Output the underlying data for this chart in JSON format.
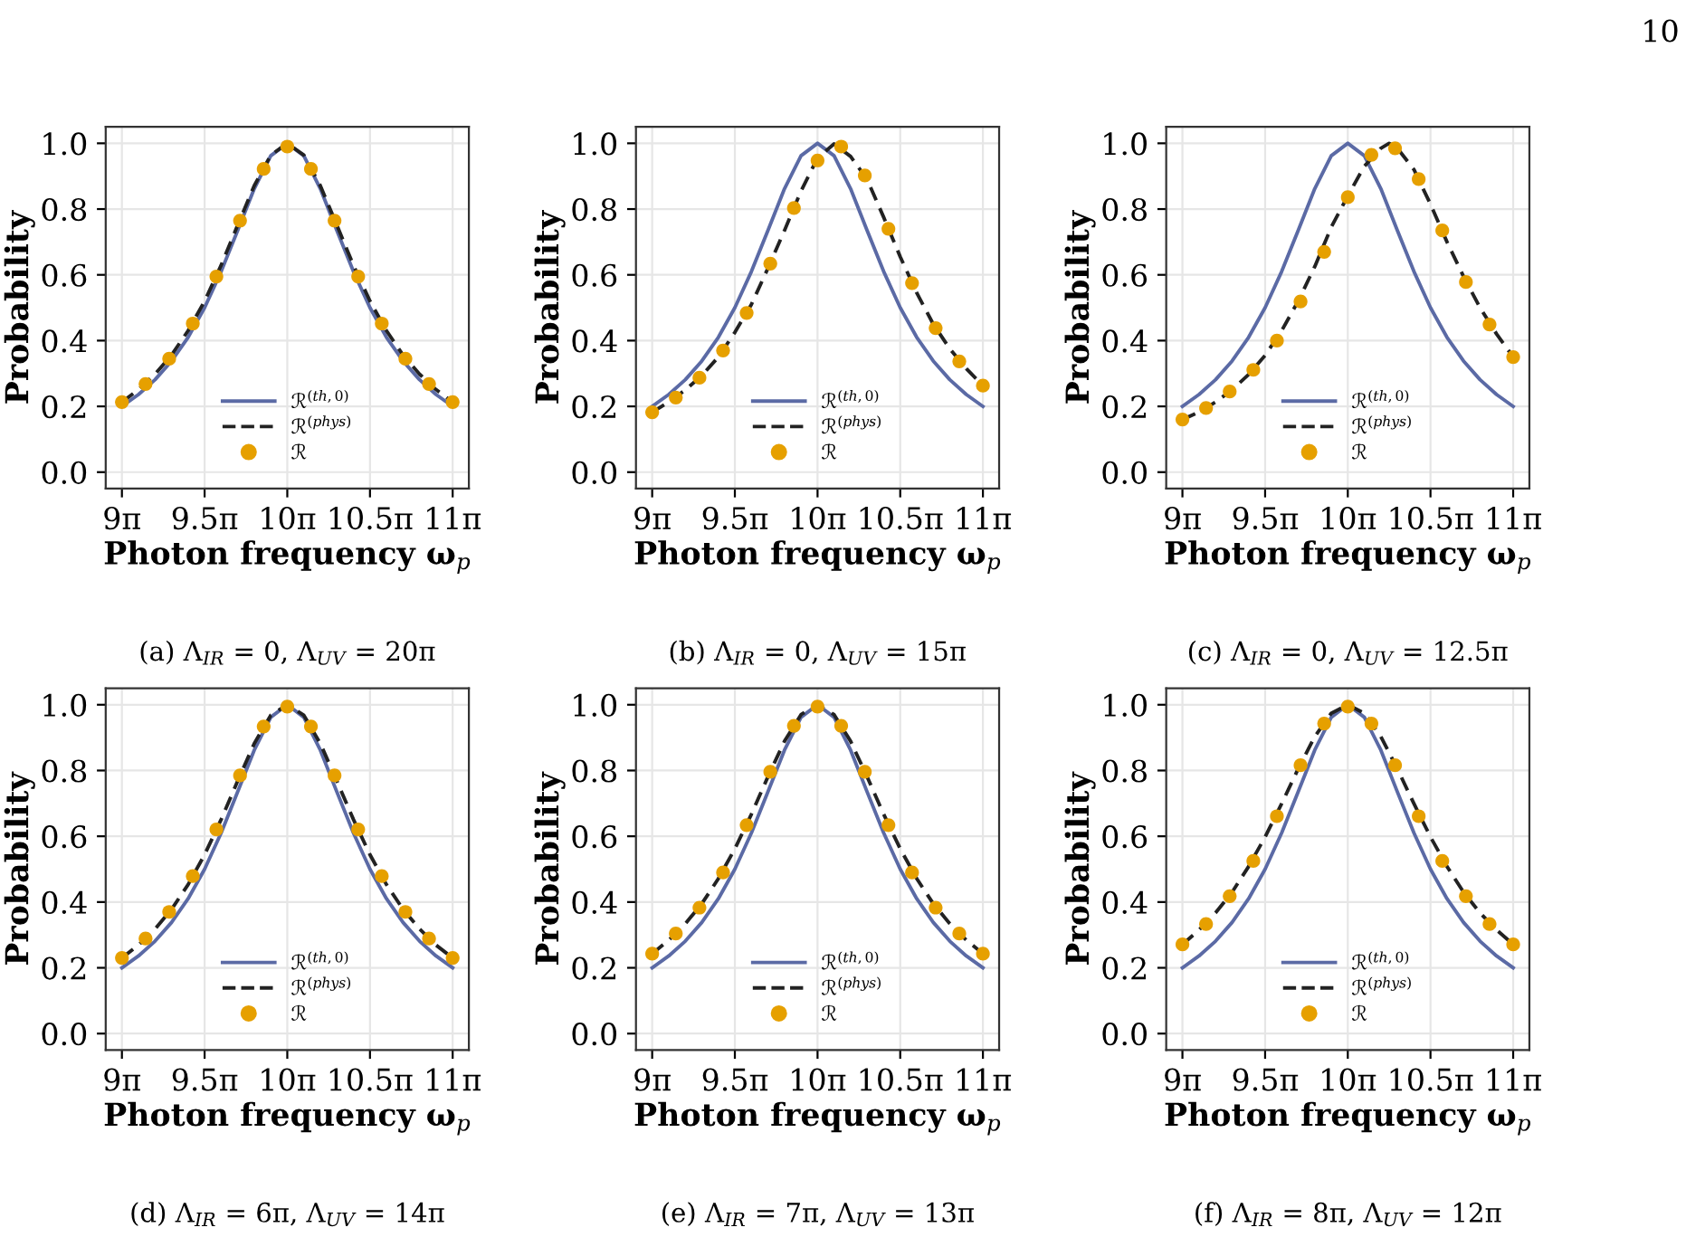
{
  "chart_data": [
    {
      "type": "line",
      "ylabel": "Probability",
      "xlabel": "Photon frequency ω$_{p}$",
      "annotations": [
        "(a) Λ$_{IR}$ = 0, Λ$_{UV}$ = 20π"
      ],
      "x": [
        28.274,
        28.588,
        28.903,
        29.217,
        29.531,
        29.845,
        30.159,
        30.473,
        30.788,
        31.102,
        31.416,
        31.73,
        32.044,
        32.358,
        32.673,
        32.987,
        33.301,
        33.615,
        33.929,
        34.243,
        34.558
      ],
      "xlim": [
        27.966,
        34.866
      ],
      "xticks": [
        {
          "value": 28.274,
          "label": "9π"
        },
        {
          "value": 29.845,
          "label": "9.5π"
        },
        {
          "value": 31.416,
          "label": "10π"
        },
        {
          "value": 32.987,
          "label": "10.5π"
        },
        {
          "value": 34.558,
          "label": "11π"
        }
      ],
      "ylim": [
        -0.05,
        1.05
      ],
      "yticks": [
        {
          "value": 0,
          "label": "0.0"
        },
        {
          "value": 0.2,
          "label": "0.2"
        },
        {
          "value": 0.4,
          "label": "0.4"
        },
        {
          "value": 0.6,
          "label": "0.6"
        },
        {
          "value": 0.8,
          "label": "0.8"
        },
        {
          "value": 1,
          "label": "1.0"
        }
      ],
      "grid": true,
      "legend": "bottom",
      "series": [
        {
          "name": "ℛ$^{(th,0)}$",
          "color": "#5b6aa5",
          "line_style": "solid",
          "values": [
            0.2,
            0.236,
            0.281,
            0.338,
            0.41,
            0.5,
            0.61,
            0.735,
            0.862,
            0.962,
            1,
            0.962,
            0.862,
            0.735,
            0.61,
            0.5,
            0.41,
            0.338,
            0.281,
            0.236,
            0.2
          ]
        },
        {
          "name": "ℛ$^{(phys)}$",
          "color": "#222222",
          "line_style": "dashed",
          "values": [
            0.213,
            0.251,
            0.298,
            0.356,
            0.43,
            0.52,
            0.629,
            0.751,
            0.871,
            0.964,
            1,
            0.964,
            0.871,
            0.751,
            0.629,
            0.52,
            0.43,
            0.356,
            0.298,
            0.251,
            0.213
          ]
        },
        {
          "name": "ℛ",
          "type": "scatter",
          "marker": "circle",
          "color": "#e6a000",
          "x": [
            28.274,
            28.723,
            29.172,
            29.621,
            30.069,
            30.518,
            30.967,
            31.416,
            31.865,
            32.314,
            32.763,
            33.211,
            33.66,
            34.109,
            34.558
          ],
          "values": [
            0.213,
            0.268,
            0.345,
            0.452,
            0.595,
            0.765,
            0.922,
            0.99,
            0.922,
            0.765,
            0.595,
            0.452,
            0.345,
            0.268,
            0.213
          ]
        }
      ]
    },
    {
      "type": "line",
      "ylabel": "Probability",
      "xlabel": "Photon frequency ω$_{p}$",
      "annotations": [
        "(b) Λ$_{IR}$ = 0, Λ$_{UV}$ = 15π"
      ],
      "x": [
        28.274,
        28.588,
        28.903,
        29.217,
        29.531,
        29.845,
        30.159,
        30.473,
        30.788,
        31.102,
        31.416,
        31.73,
        32.044,
        32.358,
        32.673,
        32.987,
        33.301,
        33.615,
        33.929,
        34.243,
        34.558
      ],
      "xlim": [
        27.966,
        34.866
      ],
      "xticks": [
        {
          "value": 28.274,
          "label": "9π"
        },
        {
          "value": 29.845,
          "label": "9.5π"
        },
        {
          "value": 31.416,
          "label": "10π"
        },
        {
          "value": 32.987,
          "label": "10.5π"
        },
        {
          "value": 34.558,
          "label": "11π"
        }
      ],
      "ylim": [
        -0.05,
        1.05
      ],
      "yticks": [
        {
          "value": 0,
          "label": "0.0"
        },
        {
          "value": 0.2,
          "label": "0.2"
        },
        {
          "value": 0.4,
          "label": "0.4"
        },
        {
          "value": 0.6,
          "label": "0.6"
        },
        {
          "value": 0.8,
          "label": "0.8"
        },
        {
          "value": 1,
          "label": "1.0"
        }
      ],
      "grid": true,
      "legend": "bottom",
      "series": [
        {
          "name": "ℛ$^{(th,0)}$",
          "color": "#5b6aa5",
          "line_style": "solid",
          "values": [
            0.2,
            0.236,
            0.281,
            0.338,
            0.41,
            0.5,
            0.61,
            0.735,
            0.862,
            0.962,
            1,
            0.962,
            0.862,
            0.735,
            0.61,
            0.5,
            0.41,
            0.338,
            0.281,
            0.236,
            0.2
          ]
        },
        {
          "name": "ℛ$^{(phys)}$",
          "color": "#222222",
          "line_style": "dashed",
          "values": [
            0.182,
            0.213,
            0.25,
            0.294,
            0.35,
            0.425,
            0.51,
            0.62,
            0.735,
            0.855,
            0.955,
            0.998,
            0.96,
            0.89,
            0.775,
            0.655,
            0.545,
            0.45,
            0.375,
            0.315,
            0.263
          ]
        },
        {
          "name": "ℛ",
          "type": "scatter",
          "marker": "circle",
          "color": "#e6a000",
          "x": [
            28.274,
            28.723,
            29.172,
            29.621,
            30.069,
            30.518,
            30.967,
            31.416,
            31.865,
            32.314,
            32.763,
            33.211,
            33.66,
            34.109,
            34.558
          ],
          "values": [
            0.182,
            0.227,
            0.287,
            0.37,
            0.484,
            0.634,
            0.803,
            0.948,
            0.99,
            0.902,
            0.74,
            0.575,
            0.438,
            0.337,
            0.263
          ]
        }
      ]
    },
    {
      "type": "line",
      "ylabel": "Probability",
      "xlabel": "Photon frequency ω$_{p}$",
      "annotations": [
        "(c) Λ$_{IR}$ = 0, Λ$_{UV}$ = 12.5π",
        "10"
      ],
      "x": [
        28.274,
        28.588,
        28.903,
        29.217,
        29.531,
        29.845,
        30.159,
        30.473,
        30.788,
        31.102,
        31.416,
        31.73,
        32.044,
        32.358,
        32.673,
        32.987,
        33.301,
        33.615,
        33.929,
        34.243,
        34.558
      ],
      "xlim": [
        27.966,
        34.866
      ],
      "xticks": [
        {
          "value": 28.274,
          "label": "9π"
        },
        {
          "value": 29.845,
          "label": "9.5π"
        },
        {
          "value": 31.416,
          "label": "10π"
        },
        {
          "value": 32.987,
          "label": "10.5π"
        },
        {
          "value": 34.558,
          "label": "11π"
        }
      ],
      "ylim": [
        -0.05,
        1.05
      ],
      "yticks": [
        {
          "value": 0,
          "label": "0.0"
        },
        {
          "value": 0.2,
          "label": "0.2"
        },
        {
          "value": 0.4,
          "label": "0.4"
        },
        {
          "value": 0.6,
          "label": "0.6"
        },
        {
          "value": 0.8,
          "label": "0.8"
        },
        {
          "value": 1,
          "label": "1.0"
        }
      ],
      "grid": true,
      "legend": "bottom",
      "series": [
        {
          "name": "ℛ$^{(th,0)}$",
          "color": "#5b6aa5",
          "line_style": "solid",
          "values": [
            0.2,
            0.236,
            0.281,
            0.338,
            0.41,
            0.5,
            0.61,
            0.735,
            0.862,
            0.962,
            1,
            0.962,
            0.862,
            0.735,
            0.61,
            0.5,
            0.41,
            0.338,
            0.281,
            0.236,
            0.2
          ]
        },
        {
          "name": "ℛ$^{(phys)}$",
          "color": "#222222",
          "line_style": "dashed",
          "x": [
            28.274,
            28.588,
            28.903,
            29.217,
            29.531,
            29.845,
            30.159,
            30.473,
            30.788,
            31.102,
            31.416,
            31.73,
            32.044,
            32.201,
            32.358,
            32.673,
            32.987,
            33.301,
            33.615,
            33.929,
            34.243,
            34.558
          ],
          "values": [
            0.16,
            0.183,
            0.213,
            0.25,
            0.297,
            0.355,
            0.43,
            0.52,
            0.625,
            0.745,
            0.84,
            0.93,
            0.985,
            1,
            0.985,
            0.92,
            0.815,
            0.7,
            0.595,
            0.5,
            0.42,
            0.35
          ]
        },
        {
          "name": "ℛ",
          "type": "scatter",
          "marker": "circle",
          "color": "#e6a000",
          "x": [
            28.274,
            28.723,
            29.172,
            29.621,
            30.069,
            30.518,
            30.967,
            31.416,
            31.865,
            32.314,
            32.763,
            33.211,
            33.66,
            34.109,
            34.558
          ],
          "values": [
            0.16,
            0.195,
            0.245,
            0.311,
            0.4,
            0.519,
            0.67,
            0.836,
            0.965,
            0.985,
            0.891,
            0.735,
            0.578,
            0.449,
            0.35
          ]
        }
      ]
    },
    {
      "type": "line",
      "ylabel": "Probability",
      "xlabel": "Photon frequency ω$_{p}$",
      "annotations": [
        "(d) Λ$_{IR}$ = 6π, Λ$_{UV}$ = 14π"
      ],
      "x": [
        28.274,
        28.588,
        28.903,
        29.217,
        29.531,
        29.845,
        30.159,
        30.473,
        30.788,
        31.102,
        31.416,
        31.73,
        32.044,
        32.358,
        32.673,
        32.987,
        33.301,
        33.615,
        33.929,
        34.243,
        34.558
      ],
      "xlim": [
        27.966,
        34.866
      ],
      "xticks": [
        {
          "value": 28.274,
          "label": "9π"
        },
        {
          "value": 29.845,
          "label": "9.5π"
        },
        {
          "value": 31.416,
          "label": "10π"
        },
        {
          "value": 32.987,
          "label": "10.5π"
        },
        {
          "value": 34.558,
          "label": "11π"
        }
      ],
      "ylim": [
        -0.05,
        1.05
      ],
      "yticks": [
        {
          "value": 0,
          "label": "0.0"
        },
        {
          "value": 0.2,
          "label": "0.2"
        },
        {
          "value": 0.4,
          "label": "0.4"
        },
        {
          "value": 0.6,
          "label": "0.6"
        },
        {
          "value": 0.8,
          "label": "0.8"
        },
        {
          "value": 1,
          "label": "1.0"
        }
      ],
      "grid": true,
      "legend": "bottom",
      "series": [
        {
          "name": "ℛ$^{(th,0)}$",
          "color": "#5b6aa5",
          "line_style": "solid",
          "values": [
            0.2,
            0.236,
            0.281,
            0.338,
            0.41,
            0.5,
            0.61,
            0.735,
            0.862,
            0.962,
            1,
            0.962,
            0.862,
            0.735,
            0.61,
            0.5,
            0.41,
            0.338,
            0.281,
            0.236,
            0.2
          ]
        },
        {
          "name": "ℛ$^{(phys)}$",
          "color": "#222222",
          "line_style": "dashed",
          "values": [
            0.23,
            0.269,
            0.318,
            0.378,
            0.453,
            0.544,
            0.651,
            0.768,
            0.882,
            0.968,
            1,
            0.968,
            0.882,
            0.768,
            0.651,
            0.544,
            0.453,
            0.378,
            0.318,
            0.269,
            0.23
          ]
        },
        {
          "name": "ℛ",
          "type": "scatter",
          "marker": "circle",
          "color": "#e6a000",
          "x": [
            28.274,
            28.723,
            29.172,
            29.621,
            30.069,
            30.518,
            30.967,
            31.416,
            31.865,
            32.314,
            32.763,
            33.211,
            33.66,
            34.109,
            34.558
          ],
          "values": [
            0.23,
            0.289,
            0.37,
            0.479,
            0.621,
            0.785,
            0.934,
            0.994,
            0.934,
            0.785,
            0.621,
            0.479,
            0.37,
            0.289,
            0.23
          ]
        }
      ]
    },
    {
      "type": "line",
      "ylabel": "Probability",
      "xlabel": "Photon frequency ω$_{p}$",
      "annotations": [
        "(e) Λ$_{IR}$ = 7π, Λ$_{UV}$ = 13π"
      ],
      "x": [
        28.274,
        28.588,
        28.903,
        29.217,
        29.531,
        29.845,
        30.159,
        30.473,
        30.788,
        31.102,
        31.416,
        31.73,
        32.044,
        32.358,
        32.673,
        32.987,
        33.301,
        33.615,
        33.929,
        34.243,
        34.558
      ],
      "xlim": [
        27.966,
        34.866
      ],
      "xticks": [
        {
          "value": 28.274,
          "label": "9π"
        },
        {
          "value": 29.845,
          "label": "9.5π"
        },
        {
          "value": 31.416,
          "label": "10π"
        },
        {
          "value": 32.987,
          "label": "10.5π"
        },
        {
          "value": 34.558,
          "label": "11π"
        }
      ],
      "ylim": [
        -0.05,
        1.05
      ],
      "yticks": [
        {
          "value": 0,
          "label": "0.0"
        },
        {
          "value": 0.2,
          "label": "0.2"
        },
        {
          "value": 0.4,
          "label": "0.4"
        },
        {
          "value": 0.6,
          "label": "0.6"
        },
        {
          "value": 0.8,
          "label": "0.8"
        },
        {
          "value": 1,
          "label": "1.0"
        }
      ],
      "grid": true,
      "legend": "bottom",
      "series": [
        {
          "name": "ℛ$^{(th,0)}$",
          "color": "#5b6aa5",
          "line_style": "solid",
          "values": [
            0.2,
            0.236,
            0.281,
            0.338,
            0.41,
            0.5,
            0.61,
            0.735,
            0.862,
            0.962,
            1,
            0.962,
            0.862,
            0.735,
            0.61,
            0.5,
            0.41,
            0.338,
            0.281,
            0.236,
            0.2
          ]
        },
        {
          "name": "ℛ$^{(phys)}$",
          "color": "#222222",
          "line_style": "dashed",
          "values": [
            0.243,
            0.284,
            0.334,
            0.395,
            0.471,
            0.562,
            0.667,
            0.781,
            0.889,
            0.97,
            1,
            0.97,
            0.889,
            0.781,
            0.667,
            0.562,
            0.471,
            0.395,
            0.334,
            0.284,
            0.243
          ]
        },
        {
          "name": "ℛ",
          "type": "scatter",
          "marker": "circle",
          "color": "#e6a000",
          "x": [
            28.274,
            28.723,
            29.172,
            29.621,
            30.069,
            30.518,
            30.967,
            31.416,
            31.865,
            32.314,
            32.763,
            33.211,
            33.66,
            34.109,
            34.558
          ],
          "values": [
            0.243,
            0.304,
            0.383,
            0.49,
            0.634,
            0.796,
            0.936,
            0.994,
            0.936,
            0.796,
            0.634,
            0.49,
            0.383,
            0.304,
            0.243
          ]
        }
      ]
    },
    {
      "type": "line",
      "ylabel": "Probability",
      "xlabel": "Photon frequency ω$_{p}$",
      "annotations": [
        "(f) Λ$_{IR}$ = 8π, Λ$_{UV}$ = 12π"
      ],
      "x": [
        28.274,
        28.588,
        28.903,
        29.217,
        29.531,
        29.845,
        30.159,
        30.473,
        30.788,
        31.102,
        31.416,
        31.73,
        32.044,
        32.358,
        32.673,
        32.987,
        33.301,
        33.615,
        33.929,
        34.243,
        34.558
      ],
      "xlim": [
        27.966,
        34.866
      ],
      "xticks": [
        {
          "value": 28.274,
          "label": "9π"
        },
        {
          "value": 29.845,
          "label": "9.5π"
        },
        {
          "value": 31.416,
          "label": "10π"
        },
        {
          "value": 32.987,
          "label": "10.5π"
        },
        {
          "value": 34.558,
          "label": "11π"
        }
      ],
      "ylim": [
        -0.05,
        1.05
      ],
      "yticks": [
        {
          "value": 0,
          "label": "0.0"
        },
        {
          "value": 0.2,
          "label": "0.2"
        },
        {
          "value": 0.4,
          "label": "0.4"
        },
        {
          "value": 0.6,
          "label": "0.6"
        },
        {
          "value": 0.8,
          "label": "0.8"
        },
        {
          "value": 1,
          "label": "1.0"
        }
      ],
      "grid": true,
      "legend": "bottom",
      "series": [
        {
          "name": "ℛ$^{(th,0)}$",
          "color": "#5b6aa5",
          "line_style": "solid",
          "values": [
            0.2,
            0.236,
            0.281,
            0.338,
            0.41,
            0.5,
            0.61,
            0.735,
            0.862,
            0.962,
            1,
            0.962,
            0.862,
            0.735,
            0.61,
            0.5,
            0.41,
            0.338,
            0.281,
            0.236,
            0.2
          ]
        },
        {
          "name": "ℛ$^{(phys)}$",
          "color": "#222222",
          "line_style": "dashed",
          "values": [
            0.271,
            0.315,
            0.367,
            0.43,
            0.508,
            0.598,
            0.699,
            0.805,
            0.903,
            0.974,
            1,
            0.974,
            0.903,
            0.805,
            0.699,
            0.598,
            0.508,
            0.43,
            0.367,
            0.315,
            0.271
          ]
        },
        {
          "name": "ℛ",
          "type": "scatter",
          "marker": "circle",
          "color": "#e6a000",
          "x": [
            28.274,
            28.723,
            29.172,
            29.621,
            30.069,
            30.518,
            30.967,
            31.416,
            31.865,
            32.314,
            32.763,
            33.211,
            33.66,
            34.109,
            34.558
          ],
          "values": [
            0.271,
            0.333,
            0.418,
            0.525,
            0.661,
            0.816,
            0.943,
            0.994,
            0.943,
            0.816,
            0.661,
            0.525,
            0.418,
            0.333,
            0.271
          ]
        }
      ]
    }
  ]
}
